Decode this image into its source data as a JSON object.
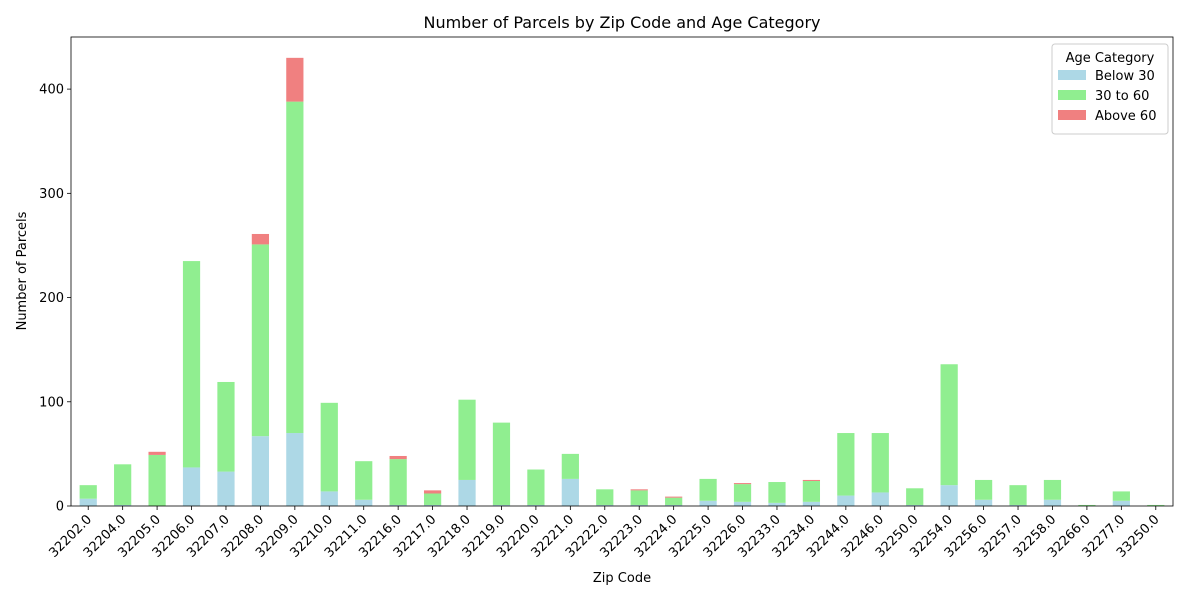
{
  "chart_data": {
    "type": "bar",
    "stacked": true,
    "title": "Number of Parcels by Zip Code and Age Category",
    "xlabel": "Zip Code",
    "ylabel": "Number of Parcels",
    "ylim": [
      0,
      450
    ],
    "yticks": [
      0,
      100,
      200,
      300,
      400
    ],
    "legend": {
      "title": "Age Category",
      "placement": "top-right"
    },
    "categories": [
      "32202.0",
      "32204.0",
      "32205.0",
      "32206.0",
      "32207.0",
      "32208.0",
      "32209.0",
      "32210.0",
      "32211.0",
      "32216.0",
      "32217.0",
      "32218.0",
      "32219.0",
      "32220.0",
      "32221.0",
      "32222.0",
      "32223.0",
      "32224.0",
      "32225.0",
      "32226.0",
      "32233.0",
      "32234.0",
      "32244.0",
      "32246.0",
      "32250.0",
      "32254.0",
      "32256.0",
      "32257.0",
      "32258.0",
      "32266.0",
      "32277.0",
      "33250.0"
    ],
    "series": [
      {
        "name": "Below 30",
        "color": "#add8e6",
        "values": [
          7,
          1,
          0,
          37,
          33,
          67,
          70,
          14,
          6,
          1,
          1,
          25,
          1,
          1,
          26,
          1,
          1,
          1,
          5,
          4,
          3,
          4,
          10,
          13,
          1,
          20,
          6,
          1,
          6,
          0,
          5,
          0
        ]
      },
      {
        "name": "30 to 60",
        "color": "#90ee90",
        "values": [
          13,
          39,
          49,
          198,
          86,
          184,
          318,
          85,
          37,
          44,
          11,
          77,
          79,
          34,
          24,
          15,
          14,
          7,
          21,
          17,
          20,
          20,
          60,
          57,
          16,
          116,
          19,
          19,
          19,
          1,
          9,
          1
        ]
      },
      {
        "name": "Above 60",
        "color": "#f08080",
        "values": [
          0,
          0,
          3,
          0,
          0,
          10,
          42,
          0,
          0,
          3,
          3,
          0,
          0,
          0,
          0,
          0,
          1,
          1,
          0,
          1,
          0,
          1,
          0,
          0,
          0,
          0,
          0,
          0,
          0,
          0,
          0,
          0
        ]
      }
    ]
  }
}
